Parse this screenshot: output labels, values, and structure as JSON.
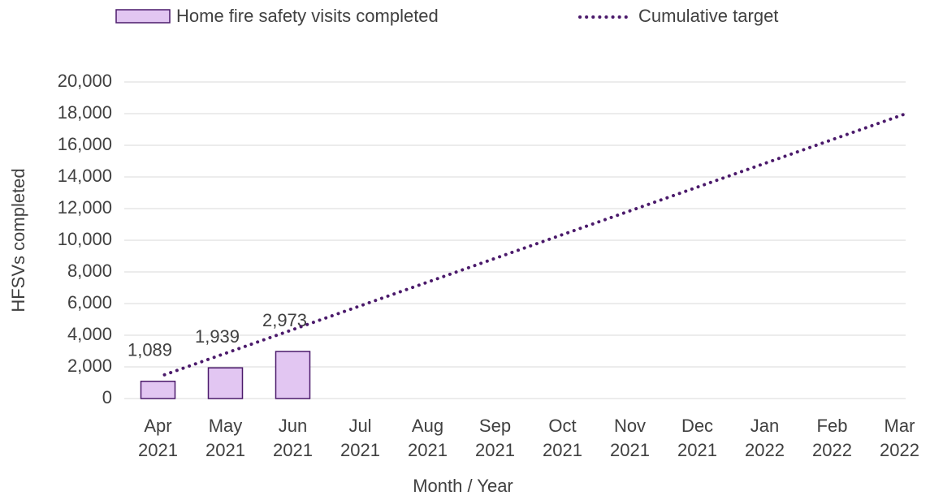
{
  "chart_data": {
    "type": "bar+line",
    "x_label": "Month / Year",
    "y_label": "HFSVs completed",
    "categories": [
      "Apr 2021",
      "May 2021",
      "Jun 2021",
      "Jul 2021",
      "Aug 2021",
      "Sep 2021",
      "Oct 2021",
      "Nov 2021",
      "Dec 2021",
      "Jan 2022",
      "Feb 2022",
      "Mar 2022"
    ],
    "series": [
      {
        "name": "Home fire safety visits completed",
        "type": "bar",
        "color": "#e2c6f2",
        "edge_color": "#4b1a6b",
        "values": [
          1089,
          1939,
          2973,
          null,
          null,
          null,
          null,
          null,
          null,
          null,
          null,
          null
        ],
        "value_labels": [
          "1,089",
          "1,939",
          "2,973",
          null,
          null,
          null,
          null,
          null,
          null,
          null,
          null,
          null
        ]
      },
      {
        "name": "Cumulative target",
        "type": "line",
        "color": "#4b1a6b",
        "style": "dotted",
        "values": [
          1500,
          3000,
          4500,
          6000,
          7500,
          9000,
          10500,
          12000,
          13500,
          15000,
          16500,
          18000
        ]
      }
    ],
    "ylim": [
      0,
      20000
    ],
    "yticks": [
      0,
      {
        "value": 2000,
        "label": "2,000"
      },
      {
        "value": 4000,
        "label": "4,000"
      },
      {
        "value": 6000,
        "label": "6,000"
      },
      {
        "value": 8000,
        "label": "8,000"
      },
      {
        "value": 10000,
        "label": "10,000"
      },
      {
        "value": 12000,
        "label": "12,000"
      },
      {
        "value": 14000,
        "label": "14,000"
      },
      {
        "value": 16000,
        "label": "16,000"
      },
      {
        "value": 18000,
        "label": "18,000"
      },
      {
        "value": 20000,
        "label": "20,000"
      }
    ],
    "grid": true,
    "legend": "top"
  }
}
